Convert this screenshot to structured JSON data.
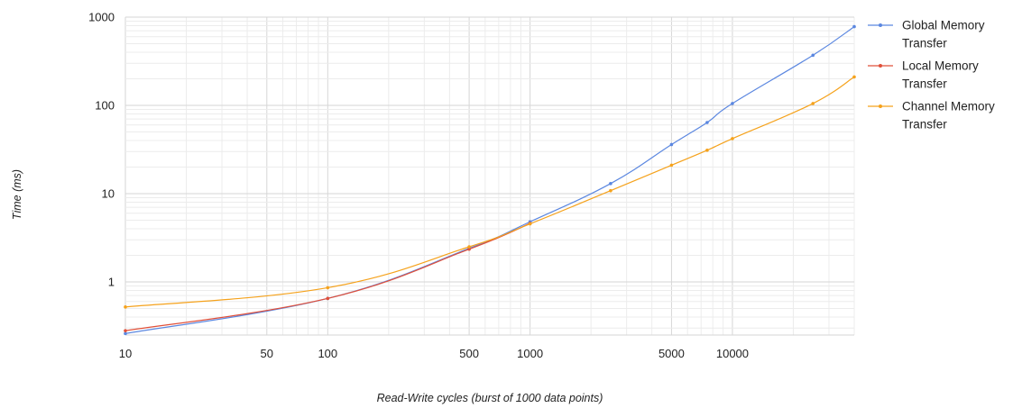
{
  "chart_data": {
    "type": "line",
    "title": "",
    "xlabel": "Read-Write cycles (burst of 1000 data points)",
    "ylabel": "Time (ms)",
    "x_scale": "log",
    "y_scale": "log",
    "xlim": [
      10,
      40000
    ],
    "ylim": [
      0.25,
      1000
    ],
    "x_ticks": [
      10,
      50,
      100,
      500,
      1000,
      5000,
      10000
    ],
    "x_tick_labels": [
      "10",
      "50",
      "100",
      "500",
      "1000",
      "5000",
      "10000"
    ],
    "y_ticks": [
      1,
      10,
      100,
      1000
    ],
    "y_tick_labels": [
      "1",
      "10",
      "100",
      "1000"
    ],
    "grid": true,
    "legend_position": "right",
    "series": [
      {
        "name_lines": [
          "Global Memory",
          "Transfer"
        ],
        "color": "#5b87e0",
        "x": [
          10,
          100,
          500,
          1000,
          2500,
          5000,
          7500,
          10000,
          25000,
          40000
        ],
        "y": [
          0.26,
          0.65,
          2.4,
          4.8,
          13,
          36,
          64,
          105,
          370,
          780
        ]
      },
      {
        "name_lines": [
          "Local Memory",
          "Transfer"
        ],
        "color": "#e0503a",
        "x": [
          10,
          100,
          500,
          1000
        ],
        "y": [
          0.28,
          0.65,
          2.35,
          4.6
        ]
      },
      {
        "name_lines": [
          "Channel Memory",
          "Transfer"
        ],
        "color": "#f5a21c",
        "x": [
          10,
          100,
          500,
          1000,
          2500,
          5000,
          7500,
          10000,
          25000,
          40000
        ],
        "y": [
          0.52,
          0.86,
          2.5,
          4.55,
          10.8,
          21,
          31,
          42,
          105,
          210
        ]
      }
    ]
  }
}
